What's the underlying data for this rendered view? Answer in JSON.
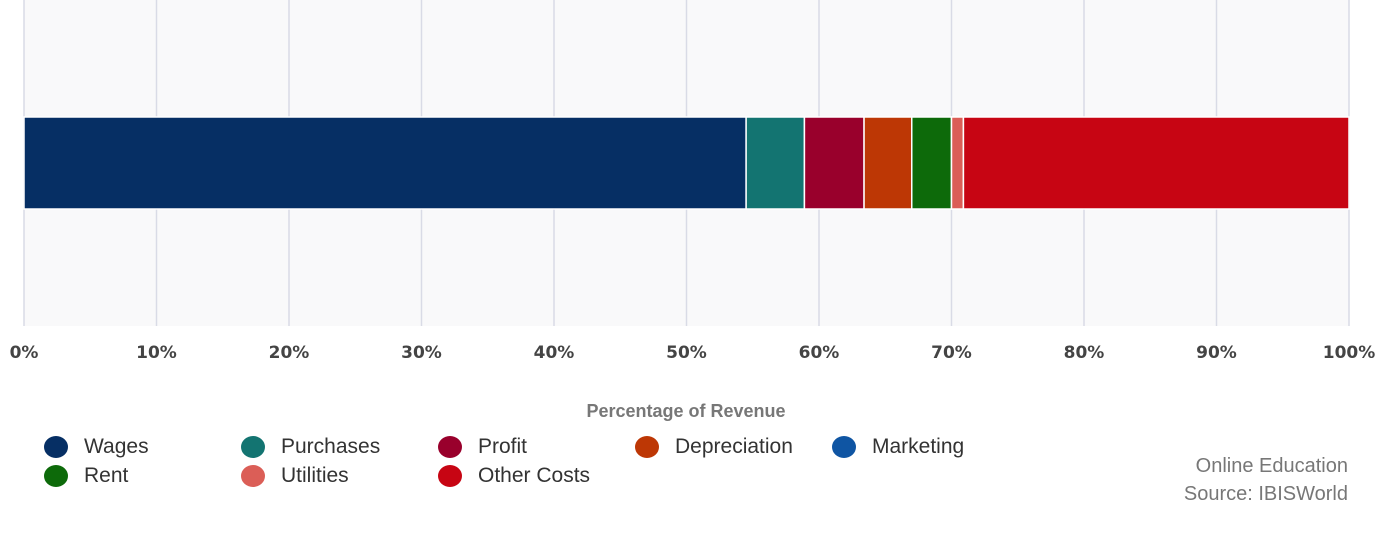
{
  "chart_data": {
    "type": "bar",
    "orientation": "horizontal-stacked",
    "xlabel": "Percentage of Revenue",
    "xlim": [
      0,
      100
    ],
    "xticks": [
      "0%",
      "10%",
      "20%",
      "30%",
      "40%",
      "50%",
      "60%",
      "70%",
      "80%",
      "90%",
      "100%"
    ],
    "grid": true,
    "legend_position": "bottom-left",
    "series": [
      {
        "name": "Wages",
        "value": 54.5,
        "color": "#062f64"
      },
      {
        "name": "Purchases",
        "value": 4.4,
        "color": "#137471"
      },
      {
        "name": "Profit",
        "value": 4.5,
        "color": "#99002c"
      },
      {
        "name": "Depreciation",
        "value": 3.6,
        "color": "#bd3705"
      },
      {
        "name": "Rent",
        "value": 3.0,
        "color": "#0d6a0a"
      },
      {
        "name": "Marketing",
        "value": 0.0,
        "color": "#0f55a3"
      },
      {
        "name": "Utilities",
        "value": 0.9,
        "color": "#db5e57"
      },
      {
        "name": "Other Costs",
        "value": 29.1,
        "color": "#c70513"
      }
    ]
  },
  "legend": {
    "row1": [
      {
        "label": "Wages",
        "color": "#062f64"
      },
      {
        "label": "Purchases",
        "color": "#137471"
      },
      {
        "label": "Profit",
        "color": "#99002c"
      },
      {
        "label": "Depreciation",
        "color": "#bd3705"
      },
      {
        "label": "Marketing",
        "color": "#0f55a3"
      }
    ],
    "row2": [
      {
        "label": "Rent",
        "color": "#0d6a0a"
      },
      {
        "label": "Utilities",
        "color": "#db5e57"
      },
      {
        "label": "Other Costs",
        "color": "#c70513"
      }
    ]
  },
  "source": {
    "industry": "Online Education",
    "attribution": "Source: IBISWorld"
  }
}
